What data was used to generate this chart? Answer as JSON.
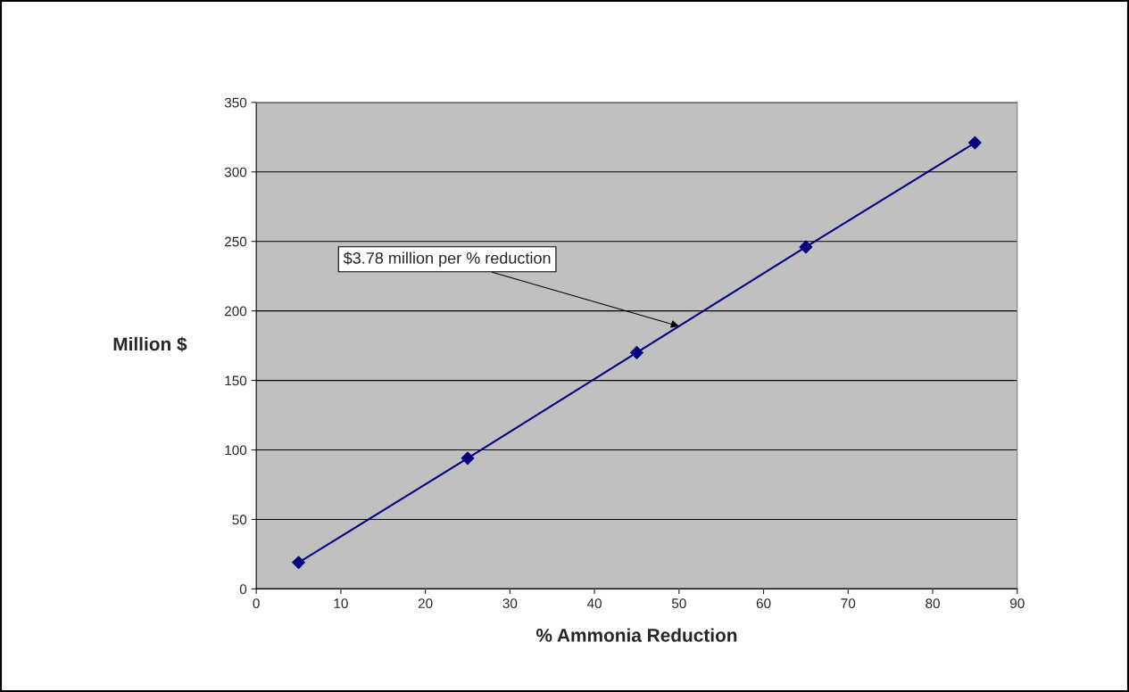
{
  "chart_data": {
    "type": "line",
    "xlabel": "% Ammonia Reduction",
    "ylabel": "Million $",
    "x": [
      5,
      25,
      45,
      65,
      85
    ],
    "series": [
      {
        "color": "#000080",
        "values": [
          19,
          94,
          170,
          246,
          321
        ]
      }
    ],
    "xlim": [
      0,
      90
    ],
    "xticks": [
      0,
      10,
      20,
      30,
      40,
      50,
      60,
      70,
      80,
      90
    ],
    "ylim": [
      0,
      350
    ],
    "yticks": [
      0,
      50,
      100,
      150,
      200,
      250,
      300,
      350
    ],
    "grid": "y",
    "marker": "diamond",
    "line_style": "solid",
    "annotations": [
      {
        "text": "$3.78 million per % reduction",
        "x": 50,
        "y": 189
      }
    ]
  }
}
